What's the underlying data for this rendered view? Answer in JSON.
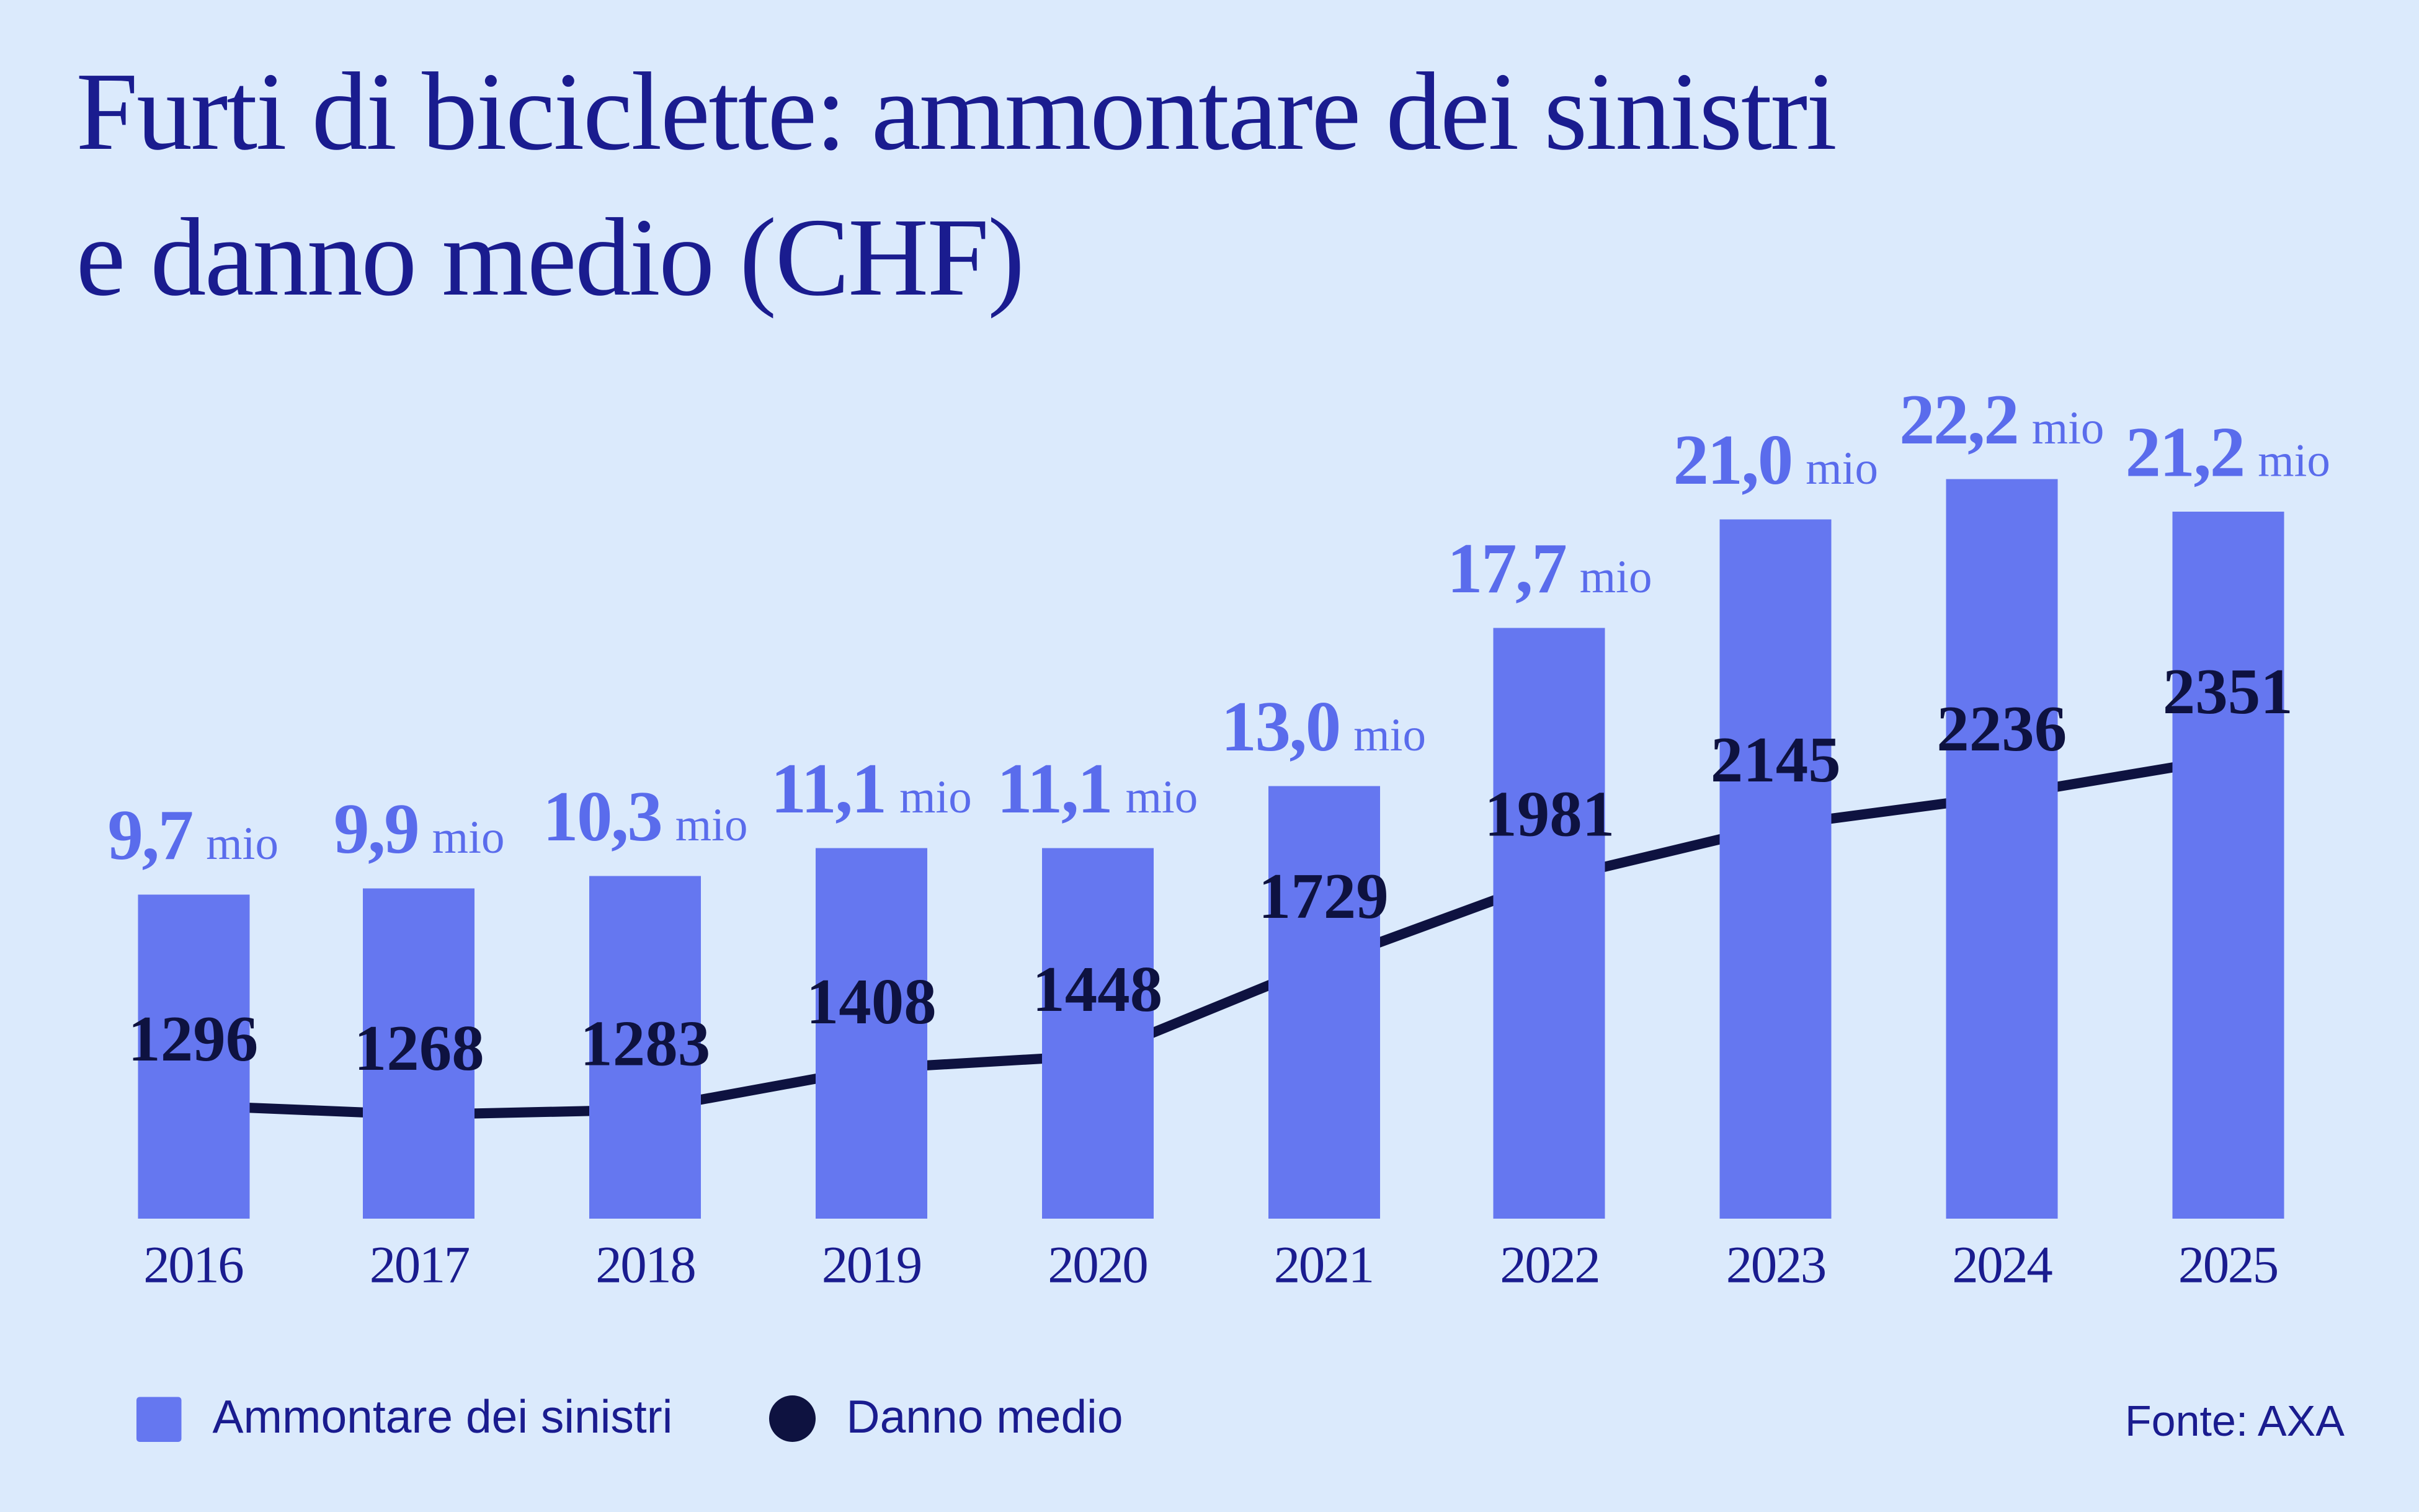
{
  "page": {
    "title_line1": "Furti di biciclette: ammontare dei sinistri",
    "title_line2": "e danno medio (CHF)",
    "source": "Fonte: AXA"
  },
  "legend": {
    "bars_label": "Ammontare dei sinistri",
    "line_label": "Danno medio"
  },
  "colors": {
    "background": "#dbeafc",
    "bar": "#6577f0",
    "bar_value_label": "#5a6cec",
    "dark_navy": "#0e1240",
    "brand_navy": "#1a1c8f"
  },
  "chart_data": {
    "type": "bar+line",
    "title": "Furti di biciclette: ammontare dei sinistri e danno medio (CHF)",
    "categories": [
      "2016",
      "2017",
      "2018",
      "2019",
      "2020",
      "2021",
      "2022",
      "2023",
      "2024",
      "2025"
    ],
    "unit_suffix": "mio",
    "series": [
      {
        "name": "Ammontare dei sinistri",
        "type": "bar",
        "unit": "mio CHF",
        "values": [
          9.7,
          9.9,
          10.3,
          11.1,
          11.1,
          13.0,
          17.7,
          21.0,
          22.2,
          21.2
        ],
        "labels": [
          "9,7",
          "9,9",
          "10,3",
          "11,1",
          "11,1",
          "13,0",
          "17,7",
          "21,0",
          "22,2",
          "21,2"
        ]
      },
      {
        "name": "Danno medio",
        "type": "line",
        "unit": "CHF",
        "values": [
          1296,
          1268,
          1283,
          1408,
          1448,
          1729,
          1981,
          2145,
          2236,
          2351
        ],
        "labels": [
          "1296",
          "1268",
          "1283",
          "1408",
          "1448",
          "1729",
          "1981",
          "2145",
          "2236",
          "2351"
        ]
      }
    ],
    "ylim_bars_mio": [
      0,
      24
    ],
    "grid": false,
    "legend_position": "bottom",
    "source": "Fonte: AXA"
  }
}
